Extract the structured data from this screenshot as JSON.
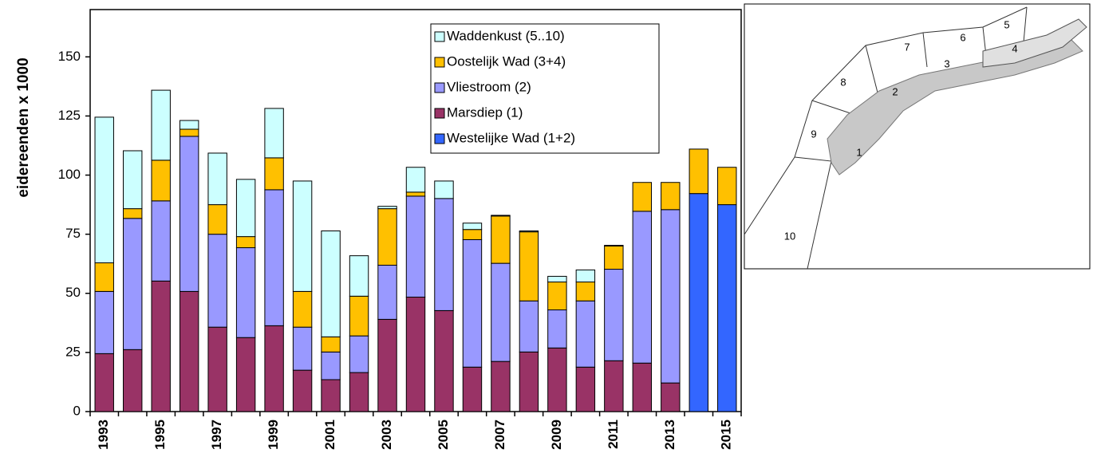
{
  "chart_data": {
    "type": "stacked_bar",
    "y_label": "eidereenden x 1000",
    "categories": [
      "1993",
      null,
      "1995",
      null,
      "1997",
      null,
      "1999",
      null,
      "2001",
      null,
      "2003",
      null,
      "2005",
      null,
      "2007",
      null,
      "2009",
      null,
      "2011",
      null,
      "2013",
      null,
      "2015"
    ],
    "series": [
      {
        "name": "Waddenkust (5..10)",
        "color": "#ccffff",
        "values": [
          61.6,
          24.5,
          29.6,
          3.7,
          21.8,
          24.2,
          20.9,
          46.7,
          44.8,
          17.1,
          1.0,
          10.5,
          7.4,
          2.7,
          0.3,
          0.4,
          2.4,
          5.1,
          0.3,
          0,
          0,
          null,
          null
        ]
      },
      {
        "name": "Oostelijk Wad (3+4)",
        "color": "#ffc000",
        "values": [
          12.1,
          4.1,
          17.2,
          3.0,
          12.5,
          4.7,
          13.5,
          15.1,
          6.4,
          16.8,
          23.9,
          1.7,
          0,
          4.3,
          20.0,
          29.2,
          11.8,
          8.0,
          9.8,
          12.2,
          11.5,
          18.8,
          15.8
        ]
      },
      {
        "name": "Vliestroom (2)",
        "color": "#9999ff",
        "values": [
          26.3,
          55.5,
          33.9,
          65.6,
          39.3,
          38.0,
          57.5,
          18.2,
          11.7,
          15.5,
          22.9,
          42.7,
          47.4,
          53.9,
          41.5,
          21.6,
          16.1,
          28.0,
          38.7,
          64.2,
          73.3,
          null,
          null
        ]
      },
      {
        "name": "Marsdiep (1)",
        "color": "#993366",
        "values": [
          24.5,
          26.2,
          55.2,
          50.8,
          35.7,
          31.3,
          36.3,
          17.5,
          13.5,
          16.5,
          39.0,
          48.4,
          42.7,
          18.8,
          21.2,
          25.2,
          26.9,
          18.8,
          21.5,
          20.5,
          12.1,
          null,
          null
        ]
      },
      {
        "name": "Westelijke Wad (1+2)",
        "color": "#3366ff",
        "values": [
          null,
          null,
          null,
          null,
          null,
          null,
          null,
          null,
          null,
          null,
          null,
          null,
          null,
          null,
          null,
          null,
          null,
          null,
          null,
          null,
          null,
          92.2,
          87.5
        ]
      }
    ],
    "ylim": [
      0,
      170
    ],
    "yticks": [
      0,
      25,
      50,
      75,
      100,
      125,
      150
    ],
    "grid": false
  },
  "map": {
    "regions": [
      "1",
      "2",
      "3",
      "4",
      "5",
      "6",
      "7",
      "8",
      "9",
      "10"
    ]
  }
}
